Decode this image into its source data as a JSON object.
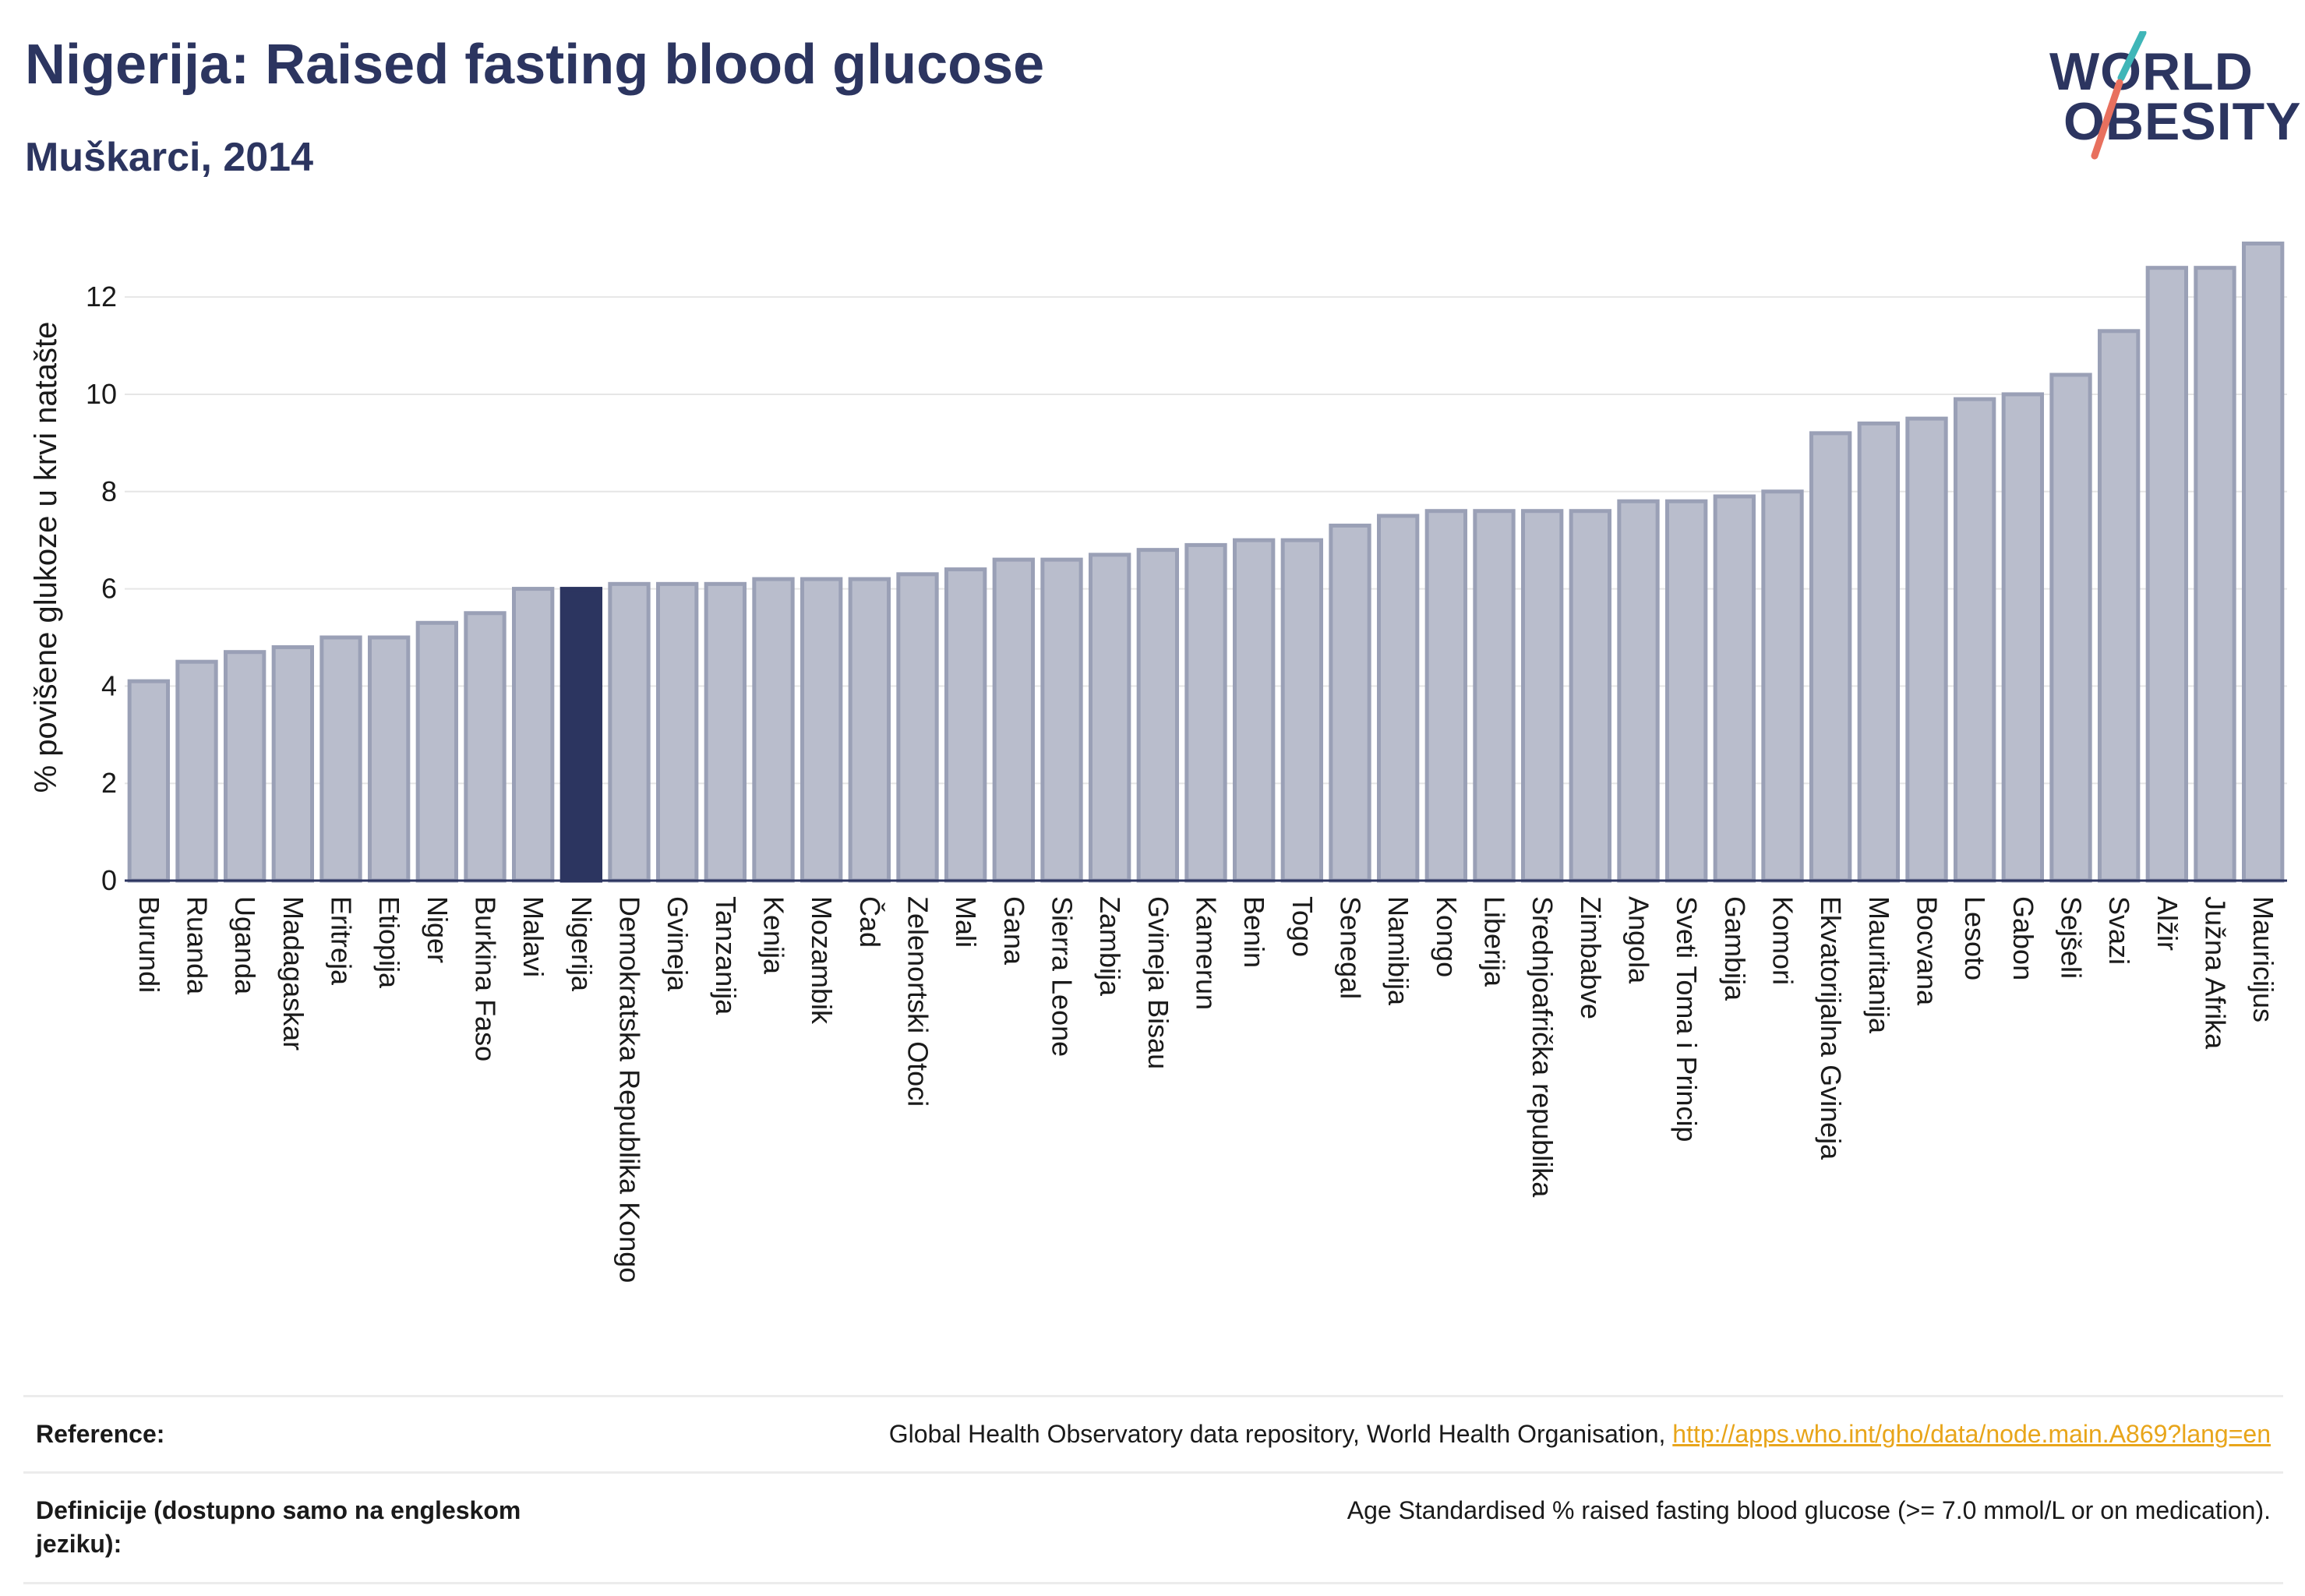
{
  "header": {
    "title": "Nigerija: Raised fasting blood glucose",
    "subtitle": "Muškarci, 2014"
  },
  "logo": {
    "line1": "WORLD",
    "line2": "OBESITY"
  },
  "colors": {
    "bar": "#b9bdcc",
    "bar_edge": "#9aa0b6",
    "highlight": "#2c3560",
    "accent_slash_1": "#3fb6b8",
    "accent_slash_2": "#e8705e"
  },
  "chart_data": {
    "type": "bar",
    "ylabel": "% povišene glukoze u krvi natašte",
    "ylim": [
      0,
      13.3
    ],
    "yticks": [
      0,
      2,
      4,
      6,
      8,
      10,
      12
    ],
    "highlight": "Nigerija",
    "categories": [
      "Burundi",
      "Ruanda",
      "Uganda",
      "Madagaskar",
      "Eritreja",
      "Etiopija",
      "Niger",
      "Burkina Faso",
      "Malavi",
      "Nigerija",
      "Demokratska Republika Kongo",
      "Gvineja",
      "Tanzanija",
      "Kenija",
      "Mozambik",
      "Čad",
      "Zelenortski Otoci",
      "Mali",
      "Gana",
      "Sierra Leone",
      "Zambija",
      "Gvineja Bisau",
      "Kamerun",
      "Benin",
      "Togo",
      "Senegal",
      "Namibija",
      "Kongo",
      "Liberija",
      "Srednjoafrička republika",
      "Zimbabve",
      "Angola",
      "Sveti Toma i Princip",
      "Gambija",
      "Komori",
      "Ekvatorijalna Gvineja",
      "Mauritanija",
      "Bocvana",
      "Lesoto",
      "Gabon",
      "Sejšeli",
      "Svazi",
      "Alžir",
      "Južna Afrika",
      "Mauricijus"
    ],
    "values": [
      4.1,
      4.5,
      4.7,
      4.8,
      5.0,
      5.0,
      5.3,
      5.5,
      6.0,
      6.0,
      6.1,
      6.1,
      6.1,
      6.2,
      6.2,
      6.2,
      6.3,
      6.4,
      6.6,
      6.6,
      6.7,
      6.8,
      6.9,
      7.0,
      7.0,
      7.3,
      7.5,
      7.6,
      7.6,
      7.6,
      7.6,
      7.8,
      7.8,
      7.9,
      8.0,
      9.2,
      9.4,
      9.5,
      9.9,
      10.0,
      10.4,
      11.3,
      12.6,
      12.6,
      13.1
    ]
  },
  "reference": {
    "label": "Reference:",
    "text": "Global Health Observatory data repository, World Health Organisation, ",
    "link": "http://apps.who.int/gho/data/node.main.A869?lang=en"
  },
  "definition": {
    "label": "Definicije (dostupno samo na engleskom jeziku):",
    "text": "Age Standardised % raised fasting blood glucose (>= 7.0 mmol/L or on medication)."
  }
}
